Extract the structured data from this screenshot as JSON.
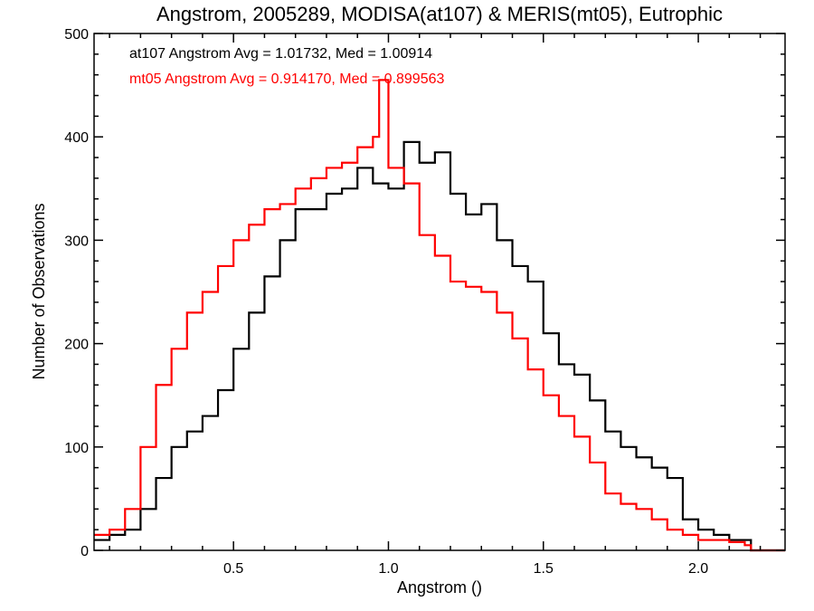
{
  "chart_data": {
    "type": "line",
    "title": "Angstrom, 2005289, MODISA(at107) & MERIS(mt05), Eutrophic",
    "xlabel": "Angstrom ()",
    "ylabel": "Number of Observations",
    "xlim": [
      0.05,
      2.28
    ],
    "ylim": [
      0,
      500
    ],
    "xticks": [
      0.5,
      1.0,
      1.5,
      2.0
    ],
    "xtick_labels": [
      "0.5",
      "1.0",
      "1.5",
      "2.0"
    ],
    "yticks": [
      0,
      100,
      200,
      300,
      400,
      500
    ],
    "ytick_labels": [
      "0",
      "100",
      "200",
      "300",
      "400",
      "500"
    ],
    "grid": false,
    "annotations": [
      {
        "text": "at107 Angstrom Avg = 1.01732, Med = 1.00914",
        "color": "#000000"
      },
      {
        "text": "mt05 Angstrom Avg = 0.914170, Med = 0.899563",
        "color": "#ff0000"
      }
    ],
    "series": [
      {
        "name": "at107",
        "color": "#000000",
        "style": "step",
        "x": [
          0.05,
          0.1,
          0.15,
          0.2,
          0.25,
          0.3,
          0.35,
          0.4,
          0.45,
          0.5,
          0.55,
          0.6,
          0.65,
          0.7,
          0.75,
          0.8,
          0.85,
          0.9,
          0.95,
          1.0,
          1.05,
          1.1,
          1.15,
          1.2,
          1.25,
          1.3,
          1.35,
          1.4,
          1.45,
          1.5,
          1.55,
          1.6,
          1.65,
          1.7,
          1.75,
          1.8,
          1.85,
          1.9,
          1.95,
          2.0,
          2.05,
          2.1,
          2.15,
          2.17,
          2.2,
          2.28
        ],
        "y": [
          10,
          15,
          20,
          40,
          70,
          100,
          115,
          130,
          155,
          195,
          230,
          265,
          300,
          330,
          330,
          345,
          350,
          370,
          355,
          350,
          395,
          375,
          385,
          345,
          325,
          335,
          300,
          275,
          260,
          210,
          180,
          170,
          145,
          115,
          100,
          90,
          80,
          70,
          30,
          20,
          15,
          10,
          10,
          0,
          0,
          0
        ]
      },
      {
        "name": "mt05",
        "color": "#ff0000",
        "style": "step",
        "x": [
          0.05,
          0.1,
          0.15,
          0.2,
          0.25,
          0.3,
          0.35,
          0.4,
          0.45,
          0.5,
          0.55,
          0.6,
          0.65,
          0.7,
          0.75,
          0.8,
          0.85,
          0.9,
          0.95,
          0.97,
          1.0,
          1.05,
          1.1,
          1.15,
          1.2,
          1.25,
          1.3,
          1.35,
          1.4,
          1.45,
          1.5,
          1.55,
          1.6,
          1.65,
          1.7,
          1.75,
          1.8,
          1.85,
          1.9,
          1.95,
          2.0,
          2.05,
          2.1,
          2.15,
          2.17,
          2.2,
          2.28
        ],
        "y": [
          15,
          20,
          40,
          100,
          160,
          195,
          230,
          250,
          275,
          300,
          315,
          330,
          335,
          350,
          360,
          370,
          375,
          390,
          400,
          455,
          370,
          355,
          305,
          285,
          260,
          255,
          250,
          230,
          205,
          175,
          150,
          130,
          110,
          85,
          55,
          45,
          40,
          30,
          20,
          15,
          10,
          10,
          8,
          5,
          0,
          0,
          0
        ]
      }
    ]
  }
}
